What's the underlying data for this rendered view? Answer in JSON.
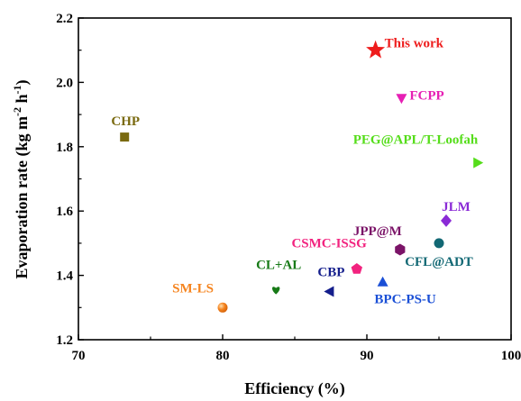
{
  "chart_data": {
    "type": "scatter",
    "xlabel": "Efficiency (%)",
    "ylabel": "Evaporation rate (kg m-2 h-1)",
    "ylabel_parts": {
      "main": "Evaporation rate (kg m",
      "sup1": "-2",
      "mid": " h",
      "sup2": "-1",
      "end": ")"
    },
    "xlim": [
      70,
      100
    ],
    "ylim": [
      1.2,
      2.2
    ],
    "xticks": [
      "70",
      "80",
      "90",
      "100"
    ],
    "yticks": [
      "1.2",
      "1.4",
      "1.6",
      "1.8",
      "2.0",
      "2.2"
    ],
    "grid": false,
    "points": [
      {
        "label": "This work",
        "x": 90.6,
        "y": 2.1,
        "marker": "star",
        "color": "#ee1c1c",
        "label_pos": "right"
      },
      {
        "label": "FCPP",
        "x": 92.4,
        "y": 1.95,
        "marker": "triangle-down",
        "color": "#e61fb4",
        "label_pos": "right"
      },
      {
        "label": "CHP",
        "x": 73.2,
        "y": 1.83,
        "marker": "square",
        "color": "#7a6a10",
        "label_pos": "above"
      },
      {
        "label": "PEG@APL/T-Loofah",
        "x": 97.7,
        "y": 1.75,
        "marker": "triangle-right",
        "color": "#55dd1a",
        "label_pos": "above-left"
      },
      {
        "label": "JLM",
        "x": 95.5,
        "y": 1.57,
        "marker": "diamond",
        "color": "#8a2ad6",
        "label_pos": "above-right"
      },
      {
        "label": "JPP@M",
        "x": 92.3,
        "y": 1.48,
        "marker": "hexagon",
        "color": "#7b1468",
        "label_pos": "above-left"
      },
      {
        "label": "CFL@ADT",
        "x": 95.0,
        "y": 1.5,
        "marker": "circle",
        "color": "#126874",
        "label_pos": "below-left"
      },
      {
        "label": "CSMC-ISSG",
        "x": 89.3,
        "y": 1.42,
        "marker": "pentagon",
        "color": "#f2237f",
        "label_pos": "above-left"
      },
      {
        "label": "BPC-PS-U",
        "x": 91.1,
        "y": 1.38,
        "marker": "triangle-up",
        "color": "#1a4fd6",
        "label_pos": "below"
      },
      {
        "label": "CBP",
        "x": 87.4,
        "y": 1.35,
        "marker": "triangle-left",
        "color": "#141e8c",
        "label_pos": "above"
      },
      {
        "label": "CL+AL",
        "x": 83.7,
        "y": 1.355,
        "marker": "heart",
        "color": "#177a17",
        "label_pos": "above"
      },
      {
        "label": "SM-LS",
        "x": 80.0,
        "y": 1.3,
        "marker": "circle-gradient",
        "color": "#f5841f",
        "label_pos": "above-left"
      }
    ]
  }
}
